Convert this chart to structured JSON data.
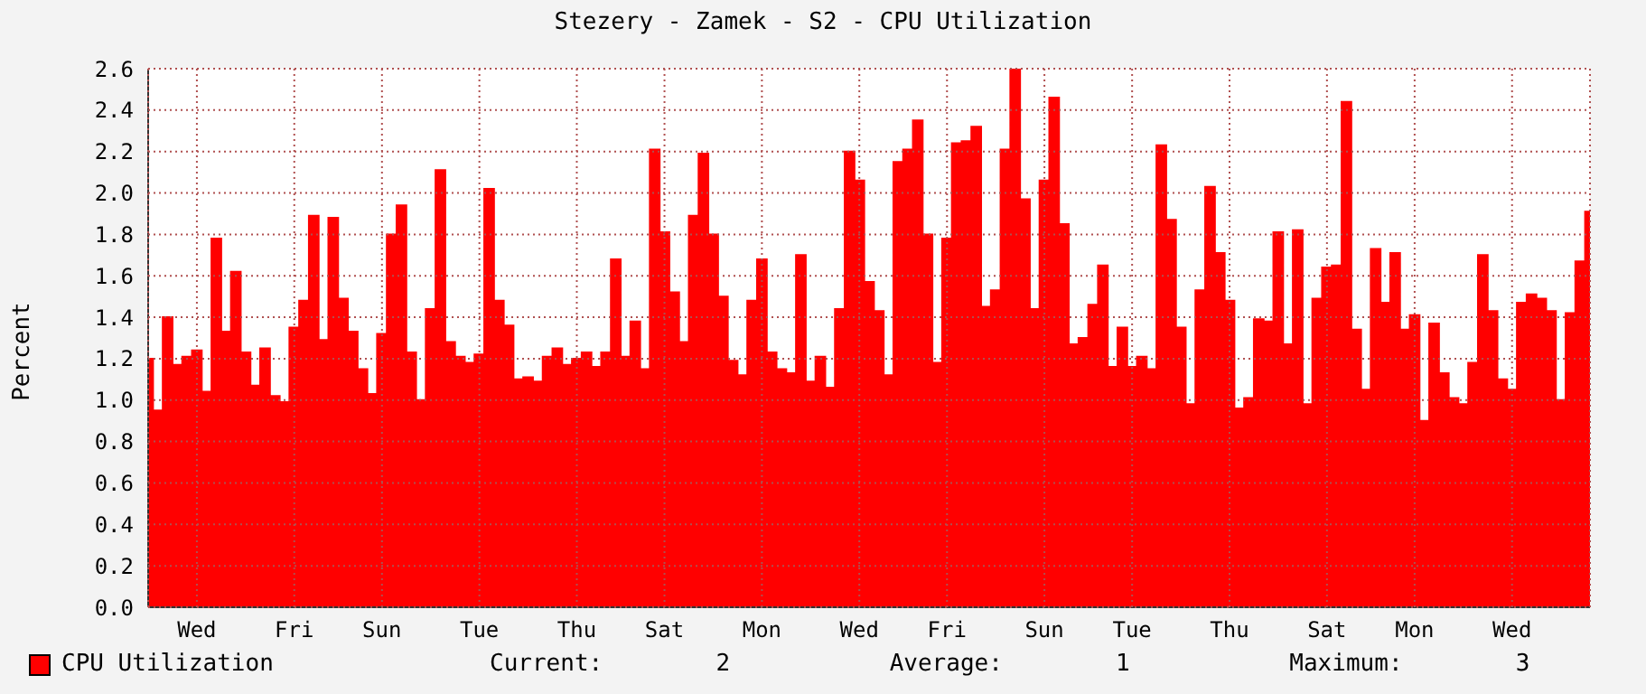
{
  "chart_data": {
    "type": "area",
    "title": "Stezery - Zamek - S2 - CPU Utilization",
    "ylabel": "Percent",
    "categories": [
      null,
      null,
      null,
      null,
      null,
      "Wed",
      null,
      null,
      null,
      null,
      null,
      null,
      null,
      null,
      null,
      "Fri",
      null,
      null,
      null,
      null,
      null,
      null,
      null,
      null,
      "Sun",
      null,
      null,
      null,
      null,
      null,
      null,
      null,
      null,
      null,
      "Tue",
      null,
      null,
      null,
      null,
      null,
      null,
      null,
      null,
      null,
      "Thu",
      null,
      null,
      null,
      null,
      null,
      null,
      null,
      null,
      "Sat",
      null,
      null,
      null,
      null,
      null,
      null,
      null,
      null,
      null,
      "Mon",
      null,
      null,
      null,
      null,
      null,
      null,
      null,
      null,
      null,
      "Wed",
      null,
      null,
      null,
      null,
      null,
      null,
      null,
      null,
      "Fri",
      null,
      null,
      null,
      null,
      null,
      null,
      null,
      null,
      null,
      "Sun",
      null,
      null,
      null,
      null,
      null,
      null,
      null,
      null,
      "Tue",
      null,
      null,
      null,
      null,
      null,
      null,
      null,
      null,
      null,
      "Thu",
      null,
      null,
      null,
      null,
      null,
      null,
      null,
      null,
      null,
      "Sat",
      null,
      null,
      null,
      null,
      null,
      null,
      null,
      null,
      "Mon",
      null,
      null,
      null,
      null,
      null,
      null,
      null,
      null,
      null,
      "Wed",
      null,
      null,
      null,
      null,
      null,
      null,
      null,
      null
    ],
    "series": [
      {
        "name": "CPU Utilization",
        "color": "#ff0000",
        "values": [
          1.2,
          0.95,
          1.4,
          1.17,
          1.21,
          1.24,
          1.04,
          1.78,
          1.33,
          1.62,
          1.23,
          1.07,
          1.25,
          1.02,
          0.99,
          1.35,
          1.48,
          1.89,
          1.29,
          1.88,
          1.49,
          1.33,
          1.15,
          1.03,
          1.32,
          1.8,
          1.94,
          1.23,
          1.0,
          1.44,
          2.11,
          1.28,
          1.21,
          1.18,
          1.22,
          2.02,
          1.48,
          1.36,
          1.1,
          1.11,
          1.09,
          1.21,
          1.25,
          1.17,
          1.2,
          1.23,
          1.16,
          1.23,
          1.68,
          1.21,
          1.38,
          1.15,
          2.21,
          1.81,
          1.52,
          1.28,
          1.89,
          2.19,
          1.8,
          1.5,
          1.19,
          1.12,
          1.48,
          1.68,
          1.23,
          1.15,
          1.13,
          1.7,
          1.09,
          1.21,
          1.06,
          1.44,
          2.2,
          2.06,
          1.57,
          1.43,
          1.12,
          2.15,
          2.21,
          2.35,
          1.8,
          1.18,
          1.78,
          2.24,
          2.25,
          2.32,
          1.45,
          1.53,
          2.21,
          2.6,
          1.97,
          1.44,
          2.06,
          2.46,
          1.85,
          1.27,
          1.3,
          1.46,
          1.65,
          1.16,
          1.35,
          1.16,
          1.21,
          1.15,
          2.23,
          1.87,
          1.35,
          0.98,
          1.53,
          2.03,
          1.71,
          1.48,
          0.96,
          1.01,
          1.39,
          1.38,
          1.81,
          1.27,
          1.82,
          0.98,
          1.49,
          1.64,
          1.65,
          2.44,
          1.34,
          1.05,
          1.73,
          1.47,
          1.71,
          1.34,
          1.41,
          0.9,
          1.37,
          1.13,
          1.01,
          0.98,
          1.18,
          1.7,
          1.43,
          1.1,
          1.05,
          1.47,
          1.51,
          1.49,
          1.43,
          1.0,
          1.42,
          1.67,
          1.91
        ]
      }
    ],
    "ylim": [
      0,
      2.6
    ],
    "yticks": [
      {
        "value": 0,
        "label": "0.0"
      },
      0.2,
      0.4,
      0.6,
      0.8,
      {
        "value": 1,
        "label": "1.0"
      },
      1.2,
      1.4,
      1.6,
      1.8,
      {
        "value": 2,
        "label": "2.0"
      },
      2.2,
      2.4,
      2.6
    ],
    "grid": true,
    "legend": "bottom left",
    "annotations": [
      "Current:        2",
      "Average:        1",
      "Maximum:        3"
    ]
  }
}
